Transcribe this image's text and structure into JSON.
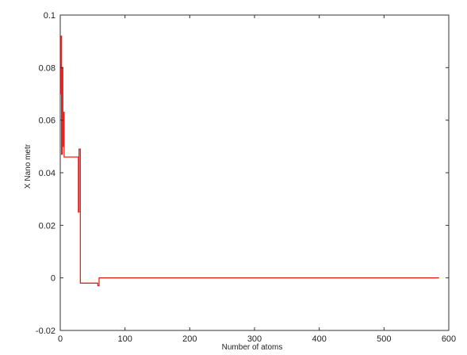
{
  "chart_data": {
    "type": "line",
    "title": "",
    "xlabel": "Number of atoms",
    "ylabel": "X  Nano metr",
    "xlim": [
      0,
      600
    ],
    "ylim": [
      -0.02,
      0.1
    ],
    "xticks": [
      0,
      100,
      200,
      300,
      400,
      500,
      600
    ],
    "xtick_labels": [
      "0",
      "100",
      "200",
      "300",
      "400",
      "500",
      "600"
    ],
    "yticks": [
      -0.02,
      0,
      0.02,
      0.04,
      0.06,
      0.08,
      0.1
    ],
    "ytick_labels": [
      "-0.02",
      "0",
      "0.02",
      "0.04",
      "0.06",
      "0.08",
      "0.1"
    ],
    "grid": false,
    "legend": "none",
    "series": [
      {
        "color": "#e8221f",
        "x": [
          0,
          1,
          1,
          2,
          2,
          3,
          3,
          4,
          4,
          5,
          5,
          6,
          6,
          28,
          28,
          29,
          29,
          31,
          31,
          58,
          58,
          60,
          60,
          585
        ],
        "y": [
          0.07,
          0.07,
          0.092,
          0.092,
          0.047,
          0.047,
          0.08,
          0.08,
          0.05,
          0.05,
          0.063,
          0.063,
          0.046,
          0.046,
          0.025,
          0.025,
          0.049,
          0.049,
          -0.002,
          -0.002,
          -0.003,
          -0.003,
          0,
          0
        ]
      }
    ]
  }
}
